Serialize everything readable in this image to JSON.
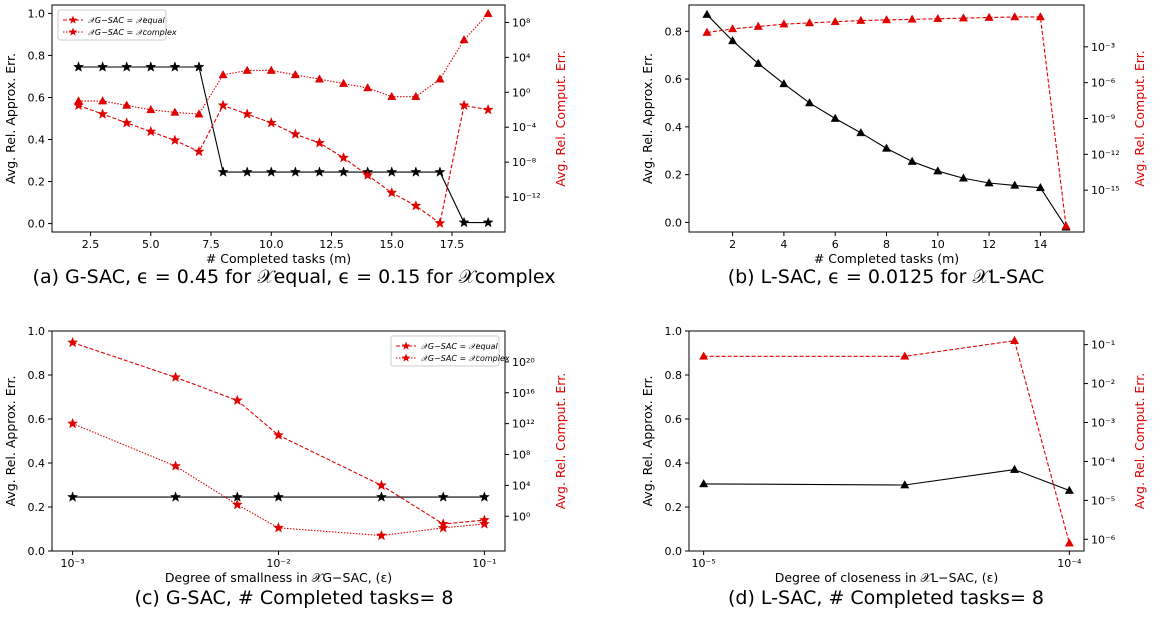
{
  "chart_data": [
    {
      "id": "a",
      "type": "line",
      "caption": "(a) G-SAC, ϵ = 0.45 for 𝒳equal, ϵ = 0.15 for 𝒳complex",
      "xlabel": "# Completed tasks (m)",
      "ylabel_left": "Avg. Rel. Approx. Err.",
      "ylabel_right": "Avg. Rel. Comput. Err.",
      "x_ticks": [
        "2.5",
        "5.0",
        "7.5",
        "10.0",
        "12.5",
        "15.0",
        "17.5"
      ],
      "xlim": [
        0.9,
        19.7
      ],
      "y_ticks_left": [
        "0.0",
        "0.2",
        "0.4",
        "0.6",
        "0.8",
        "1.0"
      ],
      "ylim_left": [
        -0.04,
        1.04
      ],
      "y_ticks_right": [
        "10⁻¹²",
        "10⁻⁸",
        "10⁻⁴",
        "10⁰",
        "10⁴",
        "10⁸"
      ],
      "ylim_right_log10": [
        -16,
        10
      ],
      "legend": {
        "placement": "top-left",
        "entries": [
          "𝒳G−SAC = 𝒳equal",
          "𝒳G−SAC = 𝒳complex"
        ]
      },
      "series": [
        {
          "axis": "left",
          "color": "#000000",
          "marker": "star",
          "style": "solid",
          "x": [
            2,
            3,
            4,
            5,
            6,
            7,
            8,
            9,
            10,
            11,
            12,
            13,
            14,
            15,
            16,
            17,
            18,
            19
          ],
          "values": [
            0.745,
            0.745,
            0.745,
            0.745,
            0.745,
            0.745,
            0.245,
            0.245,
            0.245,
            0.245,
            0.245,
            0.245,
            0.245,
            0.245,
            0.245,
            0.245,
            0.005,
            0.005
          ]
        },
        {
          "axis": "right",
          "color": "#e00000",
          "marker": "star",
          "style": "dashed",
          "x": [
            2,
            3,
            4,
            5,
            6,
            7,
            8,
            9,
            10,
            11,
            12,
            13,
            14,
            15,
            16,
            17,
            18,
            19
          ],
          "values_log10": [
            -1.5,
            -2.5,
            -3.5,
            -4.5,
            -5.5,
            -6.8,
            -1.5,
            -2.5,
            -3.5,
            -4.8,
            -5.8,
            -7.5,
            -9.5,
            -11.5,
            -13,
            -15,
            -1.5,
            -2
          ]
        },
        {
          "axis": "right",
          "color": "#e00000",
          "marker": "triangle",
          "style": "dotted",
          "x": [
            2,
            3,
            4,
            5,
            6,
            7,
            8,
            9,
            10,
            11,
            12,
            13,
            14,
            15,
            16,
            17,
            18,
            19
          ],
          "values_log10": [
            -1,
            -1,
            -1.5,
            -2,
            -2.3,
            -2.5,
            2,
            2.5,
            2.5,
            2,
            1.5,
            1,
            0.5,
            -0.5,
            -0.5,
            1.5,
            6,
            9
          ]
        }
      ]
    },
    {
      "id": "b",
      "type": "line",
      "caption": "(b) L-SAC, ϵ = 0.0125 for 𝒳L-SAC",
      "xlabel": "# Completed tasks (m)",
      "ylabel_left": "Avg. Rel. Approx. Err.",
      "ylabel_right": "Avg. Rel. Comput. Err.",
      "x_ticks": [
        "2",
        "4",
        "6",
        "8",
        "10",
        "12",
        "14"
      ],
      "xlim": [
        0.3,
        15.7
      ],
      "y_ticks_left": [
        "0.0",
        "0.2",
        "0.4",
        "0.6",
        "0.8"
      ],
      "ylim_left": [
        -0.04,
        0.91
      ],
      "y_ticks_right": [
        "10⁻¹⁵",
        "10⁻¹²",
        "10⁻⁹",
        "10⁻⁶",
        "10⁻³"
      ],
      "ylim_right_log10": [
        -18.5,
        0.5
      ],
      "series": [
        {
          "axis": "left",
          "color": "#000000",
          "marker": "triangle",
          "style": "solid",
          "x": [
            1,
            2,
            3,
            4,
            5,
            6,
            7,
            8,
            9,
            10,
            11,
            12,
            13,
            14,
            15
          ],
          "values": [
            0.87,
            0.76,
            0.665,
            0.58,
            0.5,
            0.435,
            0.375,
            0.31,
            0.255,
            0.215,
            0.185,
            0.165,
            0.155,
            0.145,
            -0.02
          ]
        },
        {
          "axis": "right",
          "color": "#e00000",
          "marker": "triangle",
          "style": "dashed",
          "x": [
            1,
            2,
            3,
            4,
            5,
            6,
            7,
            8,
            9,
            10,
            11,
            12,
            13,
            14,
            15
          ],
          "values_log10": [
            -1.8,
            -1.5,
            -1.3,
            -1.1,
            -1,
            -0.9,
            -0.8,
            -0.75,
            -0.7,
            -0.65,
            -0.6,
            -0.55,
            -0.5,
            -0.5,
            -18
          ]
        }
      ]
    },
    {
      "id": "c",
      "type": "line",
      "caption": "(c) G-SAC, # Completed tasks= 8",
      "xlabel": "Degree of smallness in 𝒳G−SAC, (ε)",
      "ylabel_left": "Avg. Rel. Approx. Err.",
      "ylabel_right": "Avg. Rel. Comput. Err.",
      "x_scale": "log",
      "x_ticks": [
        "10⁻³",
        "10⁻²",
        "10⁻¹"
      ],
      "xlim_log10": [
        -3.1,
        -0.9
      ],
      "y_ticks_left": [
        "0.0",
        "0.2",
        "0.4",
        "0.6",
        "0.8",
        "1.0"
      ],
      "ylim_left": [
        0,
        1.0
      ],
      "y_ticks_right": [
        "10⁰",
        "10⁴",
        "10⁸",
        "10¹²",
        "10¹⁶",
        "10²⁰"
      ],
      "ylim_right_log10": [
        -4.5,
        24
      ],
      "legend": {
        "placement": "top-right",
        "entries": [
          "𝒳G−SAC = 𝒳equal",
          "𝒳G−SAC = 𝒳complex"
        ]
      },
      "series": [
        {
          "axis": "left",
          "color": "#000000",
          "marker": "star",
          "style": "solid",
          "x_log10": [
            -3,
            -2.5,
            -2.2,
            -2,
            -1.5,
            -1.2,
            -1
          ],
          "values": [
            0.245,
            0.245,
            0.245,
            0.245,
            0.245,
            0.245,
            0.245
          ]
        },
        {
          "axis": "right",
          "color": "#e00000",
          "marker": "star",
          "style": "dashed",
          "x_log10": [
            -3,
            -2.5,
            -2.2,
            -2,
            -1.5,
            -1.2,
            -1
          ],
          "values_log10": [
            22.5,
            18,
            15,
            10.5,
            4,
            -1,
            -0.5
          ]
        },
        {
          "axis": "right",
          "color": "#e00000",
          "marker": "star",
          "style": "dotted",
          "x_log10": [
            -3,
            -2.5,
            -2.2,
            -2,
            -1.5,
            -1.2,
            -1
          ],
          "values_log10": [
            12,
            6.5,
            1.5,
            -1.5,
            -2.5,
            -1.5,
            -1
          ]
        }
      ]
    },
    {
      "id": "d",
      "type": "line",
      "caption": "(d) L-SAC, # Completed tasks= 8",
      "xlabel": "Degree of closeness in 𝒳L−SAC, (ε)",
      "ylabel_left": "Avg. Rel. Approx. Err.",
      "ylabel_right": "Avg. Rel. Comput. Err.",
      "x_scale": "log",
      "x_ticks": [
        "10⁻⁵",
        "10⁻⁴"
      ],
      "xlim_log10": [
        -5.04,
        -3.96
      ],
      "y_ticks_left": [
        "0.0",
        "0.2",
        "0.4",
        "0.6",
        "0.8",
        "1.0"
      ],
      "ylim_left": [
        0,
        1.0
      ],
      "y_ticks_right": [
        "10⁻⁶",
        "10⁻⁵",
        "10⁻⁴",
        "10⁻³",
        "10⁻²",
        "10⁻¹"
      ],
      "ylim_right_log10": [
        -6.3,
        -0.65
      ],
      "series": [
        {
          "axis": "left",
          "color": "#000000",
          "marker": "triangle",
          "style": "solid",
          "x_log10": [
            -5,
            -4.45,
            -4.15,
            -4
          ],
          "values": [
            0.305,
            0.3,
            0.37,
            0.275
          ]
        },
        {
          "axis": "right",
          "color": "#e00000",
          "marker": "triangle",
          "style": "dashed",
          "x_log10": [
            -5,
            -4.45,
            -4.15,
            -4
          ],
          "values_log10": [
            -1.3,
            -1.3,
            -0.9,
            -6.1
          ]
        }
      ]
    }
  ]
}
